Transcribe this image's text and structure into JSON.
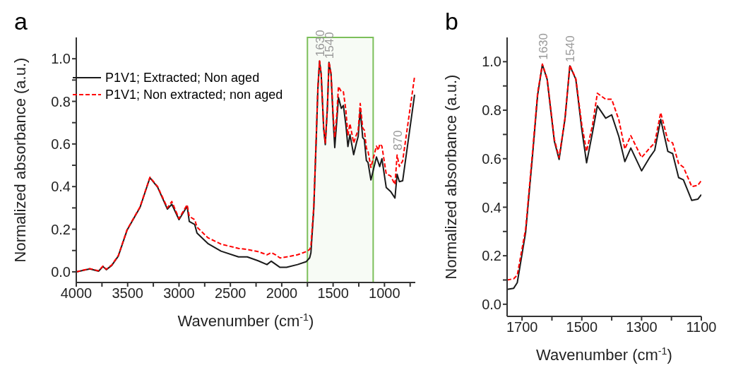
{
  "chart_data": [
    {
      "type": "line",
      "title": "a",
      "xlabel": "Wavenumber (cm$^{-1}$)",
      "ylabel": "Normalized absorbance (a.u.)",
      "xlim": [
        4000,
        700
      ],
      "ylim": [
        -0.05,
        1.1
      ],
      "xticks": [
        4000,
        {
          "value": 3750,
          "label": null
        },
        3500,
        {
          "value": 3250,
          "label": null
        },
        3000,
        {
          "value": 2750,
          "label": null
        },
        2500,
        {
          "value": 2250,
          "label": null
        },
        2000,
        {
          "value": 1750,
          "label": null
        },
        1500,
        {
          "value": 1250,
          "label": null
        },
        1000,
        {
          "value": 750,
          "label": null
        }
      ],
      "yticks": [
        {
          "value": 0,
          "label": "0.0"
        },
        {
          "value": 0.1,
          "label": null
        },
        {
          "value": 0.2,
          "label": "0.2"
        },
        {
          "value": 0.3,
          "label": null
        },
        {
          "value": 0.4,
          "label": "0.4"
        },
        {
          "value": 0.5,
          "label": null
        },
        {
          "value": 0.6,
          "label": "0.6"
        },
        {
          "value": 0.7,
          "label": null
        },
        {
          "value": 0.8,
          "label": "0.8"
        },
        {
          "value": 0.9,
          "label": null
        },
        {
          "value": 1,
          "label": "1.0"
        }
      ],
      "legend": "top left",
      "marker": "none",
      "bands": [
        {
          "axis": "x",
          "from": 1750,
          "to": 1110,
          "color": "#7cbf5a"
        }
      ],
      "annotations": [
        {
          "text": "1630",
          "x": 1630,
          "y": 0.99
        },
        {
          "text": "1540",
          "x": 1540,
          "y": 0.98
        },
        {
          "text": "870",
          "x": 870,
          "y": 0.55
        }
      ],
      "series": [
        {
          "name": "P1V1; Extracted; Non aged",
          "color": "#1a1a1a",
          "line_style": "solid",
          "x": [
            4000,
            3868,
            3783,
            3740,
            3708,
            3655,
            3591,
            3506,
            3379,
            3283,
            3208,
            3113,
            3070,
            3000,
            2921,
            2900,
            2847,
            2825,
            2719,
            2591,
            2421,
            2336,
            2230,
            2144,
            2102,
            2017,
            1953,
            1846,
            1761,
            1728,
            1716,
            1688,
            1664,
            1648,
            1632,
            1616,
            1592,
            1576,
            1556,
            1540,
            1520,
            1500,
            1484,
            1464,
            1448,
            1420,
            1400,
            1376,
            1356,
            1336,
            1300,
            1272,
            1256,
            1236,
            1212,
            1196,
            1176,
            1160,
            1132,
            1078,
            1046,
            1025,
            983,
            940,
            898,
            877,
            855,
            823,
            707
          ],
          "values": [
            0,
            0.014,
            0.003,
            0.025,
            0.01,
            0.03,
            0.074,
            0.195,
            0.303,
            0.442,
            0.397,
            0.294,
            0.317,
            0.245,
            0.308,
            0.236,
            0.222,
            0.182,
            0.133,
            0.097,
            0.07,
            0.07,
            0.052,
            0.034,
            0.05,
            0.021,
            0.021,
            0.034,
            0.048,
            0.066,
            0.089,
            0.296,
            0.626,
            0.861,
            0.988,
            0.927,
            0.673,
            0.597,
            0.767,
            0.983,
            0.927,
            0.72,
            0.583,
            0.71,
            0.818,
            0.767,
            0.781,
            0.691,
            0.588,
            0.644,
            0.55,
            0.607,
            0.635,
            0.762,
            0.63,
            0.621,
            0.522,
            0.513,
            0.431,
            0.539,
            0.494,
            0.531,
            0.396,
            0.377,
            0.346,
            0.458,
            0.423,
            0.427,
            0.831
          ]
        },
        {
          "name": "P1V1; Non extracted; non aged",
          "color": "#ff0000",
          "line_style": "dashed",
          "x": [
            4000,
            3868,
            3783,
            3740,
            3708,
            3655,
            3591,
            3506,
            3379,
            3283,
            3208,
            3113,
            3070,
            3000,
            2921,
            2900,
            2847,
            2825,
            2719,
            2591,
            2421,
            2336,
            2230,
            2144,
            2102,
            2060,
            2017,
            1953,
            1846,
            1761,
            1728,
            1716,
            1688,
            1664,
            1648,
            1632,
            1616,
            1592,
            1576,
            1556,
            1540,
            1520,
            1500,
            1484,
            1464,
            1448,
            1420,
            1400,
            1376,
            1356,
            1336,
            1300,
            1272,
            1256,
            1236,
            1212,
            1196,
            1176,
            1160,
            1132,
            1078,
            1060,
            1046,
            1025,
            983,
            940,
            898,
            877,
            855,
            823,
            707
          ],
          "values": [
            0,
            0.015,
            0.005,
            0.027,
            0.012,
            0.032,
            0.076,
            0.197,
            0.305,
            0.444,
            0.4,
            0.3,
            0.33,
            0.25,
            0.315,
            0.26,
            0.245,
            0.21,
            0.16,
            0.13,
            0.11,
            0.105,
            0.095,
            0.08,
            0.09,
            0.08,
            0.065,
            0.07,
            0.08,
            0.095,
            0.105,
            0.12,
            0.31,
            0.64,
            0.87,
            0.99,
            0.93,
            0.68,
            0.605,
            0.77,
            0.985,
            0.93,
            0.74,
            0.63,
            0.74,
            0.87,
            0.845,
            0.845,
            0.76,
            0.64,
            0.695,
            0.605,
            0.645,
            0.665,
            0.79,
            0.675,
            0.665,
            0.58,
            0.565,
            0.49,
            0.59,
            0.57,
            0.6,
            0.59,
            0.46,
            0.45,
            0.41,
            0.548,
            0.494,
            0.52,
            0.916
          ]
        }
      ]
    },
    {
      "type": "line",
      "title": "b",
      "xlabel": "Wavenumber (cm$^{-1}$)",
      "ylabel": "Normalized absorbance (a.u.)",
      "xlim": [
        1750,
        1100
      ],
      "ylim": [
        -0.05,
        1.1
      ],
      "xticks": [
        1700,
        {
          "value": 1600,
          "label": null
        },
        1500,
        {
          "value": 1400,
          "label": null
        },
        1300,
        {
          "value": 1200,
          "label": null
        },
        1100
      ],
      "yticks": [
        {
          "value": 0,
          "label": "0.0"
        },
        {
          "value": 0.1,
          "label": null
        },
        {
          "value": 0.2,
          "label": "0.2"
        },
        {
          "value": 0.3,
          "label": null
        },
        {
          "value": 0.4,
          "label": "0.4"
        },
        {
          "value": 0.5,
          "label": null
        },
        {
          "value": 0.6,
          "label": "0.6"
        },
        {
          "value": 0.7,
          "label": null
        },
        {
          "value": 0.8,
          "label": "0.8"
        },
        {
          "value": 0.9,
          "label": null
        },
        {
          "value": 1,
          "label": "1.0"
        }
      ],
      "marker": "none",
      "annotations": [
        {
          "text": "1630",
          "x": 1630,
          "y": 0.99
        },
        {
          "text": "1540",
          "x": 1540,
          "y": 0.98
        }
      ],
      "series": [
        {
          "color": "#1a1a1a",
          "line_style": "solid",
          "x": [
            1750,
            1728,
            1716,
            1688,
            1664,
            1648,
            1632,
            1616,
            1592,
            1576,
            1556,
            1540,
            1520,
            1500,
            1484,
            1464,
            1448,
            1420,
            1400,
            1376,
            1356,
            1336,
            1300,
            1272,
            1256,
            1236,
            1212,
            1196,
            1176,
            1160,
            1132,
            1112,
            1100
          ],
          "values": [
            0.061,
            0.066,
            0.089,
            0.296,
            0.626,
            0.861,
            0.988,
            0.927,
            0.673,
            0.597,
            0.767,
            0.983,
            0.927,
            0.72,
            0.583,
            0.71,
            0.818,
            0.767,
            0.781,
            0.691,
            0.588,
            0.644,
            0.55,
            0.607,
            0.635,
            0.762,
            0.63,
            0.621,
            0.522,
            0.513,
            0.428,
            0.433,
            0.452
          ]
        },
        {
          "color": "#ff0000",
          "line_style": "dashed",
          "x": [
            1750,
            1728,
            1716,
            1688,
            1664,
            1648,
            1632,
            1616,
            1592,
            1576,
            1556,
            1540,
            1520,
            1500,
            1484,
            1464,
            1448,
            1420,
            1400,
            1376,
            1356,
            1336,
            1300,
            1272,
            1256,
            1236,
            1212,
            1196,
            1176,
            1160,
            1132,
            1112,
            1100
          ],
          "values": [
            0.1,
            0.105,
            0.12,
            0.31,
            0.64,
            0.87,
            0.99,
            0.93,
            0.68,
            0.605,
            0.77,
            0.985,
            0.93,
            0.74,
            0.63,
            0.74,
            0.87,
            0.845,
            0.845,
            0.76,
            0.64,
            0.695,
            0.605,
            0.645,
            0.665,
            0.79,
            0.675,
            0.665,
            0.58,
            0.565,
            0.485,
            0.49,
            0.51
          ]
        }
      ]
    }
  ]
}
